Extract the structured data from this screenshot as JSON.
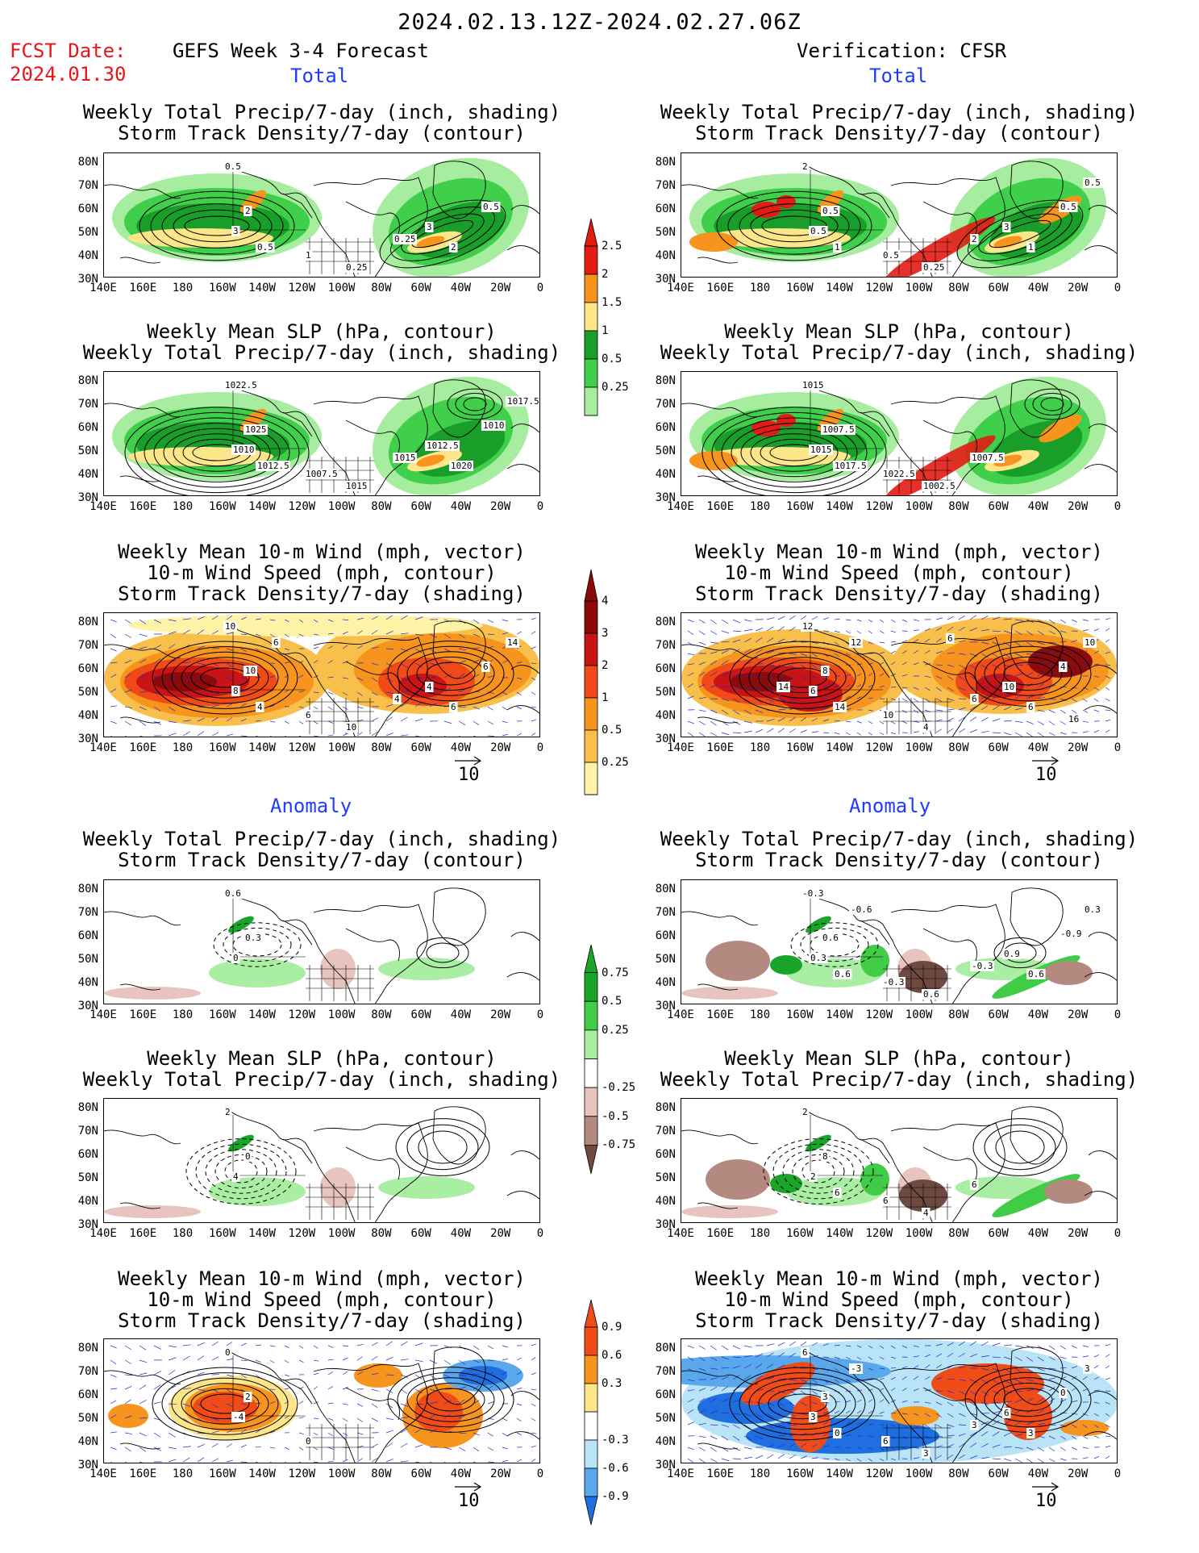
{
  "header": {
    "title": "2024.02.13.12Z-2024.02.27.06Z",
    "fcst_date_label": "FCST Date:",
    "fcst_date_value": "2024.01.30",
    "left_column_title": "GEFS Week 3-4 Forecast",
    "right_column_title": "Verification: CFSR"
  },
  "sections": {
    "total": "Total",
    "anomaly": "Anomaly"
  },
  "panel_titles": {
    "precip_storm": [
      "Weekly Total Precip/7-day (inch, shading)",
      "Storm Track Density/7-day (contour)"
    ],
    "slp_precip": [
      "Weekly Mean SLP (hPa, contour)",
      "Weekly Total Precip/7-day (inch, shading)"
    ],
    "wind_storm": [
      "Weekly Mean 10-m Wind (mph, vector)",
      "10-m Wind Speed (mph, contour)",
      "Storm Track Density/7-day (shading)"
    ]
  },
  "axes": {
    "lat_labels": [
      "80N",
      "70N",
      "60N",
      "50N",
      "40N",
      "30N"
    ],
    "lon_labels": [
      "140E",
      "160E",
      "180",
      "160W",
      "140W",
      "120W",
      "100W",
      "80W",
      "60W",
      "40W",
      "20W",
      "0"
    ]
  },
  "colorbars": {
    "precip_total": {
      "labels": [
        "2.5",
        "2",
        "1.5",
        "1",
        "0.5",
        "0.25"
      ],
      "colors": [
        "#e21b13",
        "#f7941d",
        "#fde68a",
        "#1a9e2a",
        "#3fcf4a",
        "#a7eda0"
      ]
    },
    "storm_total": {
      "labels": [
        "4",
        "3",
        "2",
        "1",
        "0.5",
        "0.25"
      ],
      "colors": [
        "#8b0a0a",
        "#c81414",
        "#ef4a17",
        "#f7941d",
        "#f8c04a",
        "#fff3a8"
      ]
    },
    "precip_anom": {
      "labels": [
        "0.75",
        "0.5",
        "0.25",
        "-0.25",
        "-0.5",
        "-0.75"
      ],
      "colors_pos": [
        "#1aa52a",
        "#41cc48",
        "#a9eea3"
      ],
      "colors_neg": [
        "#e7c4bd",
        "#b48a80",
        "#6e4a40"
      ]
    },
    "storm_anom": {
      "labels": [
        "0.9",
        "0.6",
        "0.3",
        "-0.3",
        "-0.6",
        "-0.9"
      ],
      "colors_pos": [
        "#f04c18",
        "#f7941d",
        "#fde68a"
      ],
      "colors_neg": [
        "#b9e3f7",
        "#5aa8ec",
        "#1f6fe0"
      ]
    }
  },
  "vector_reference": "10",
  "contour_labels": {
    "L_total_precip": [
      "0.5",
      "2",
      "3",
      "1",
      "0.5",
      "0.25",
      "0.25",
      "3",
      "2",
      "0.5"
    ],
    "R_total_precip": [
      "2",
      "0.5",
      "0.5",
      "0.5",
      "1",
      "0.25",
      "2",
      "3",
      "1",
      "0.5",
      "0.5"
    ],
    "L_total_slp": [
      "1022.5",
      "1025",
      "1010",
      "1007.5",
      "1012.5",
      "1015",
      "1015",
      "1012.5",
      "1020",
      "1010",
      "1017.5"
    ],
    "R_total_slp": [
      "1015",
      "1007.5",
      "1015",
      "1022.5",
      "1017.5",
      "1002.5",
      "1007.5"
    ],
    "L_total_wind": [
      "10",
      "10",
      "8",
      "6",
      "4",
      "10",
      "4",
      "4",
      "6",
      "6",
      "14",
      "6"
    ],
    "R_total_wind": [
      "12",
      "8",
      "6",
      "10",
      "14",
      "4",
      "6",
      "10",
      "6",
      "4",
      "10",
      "12",
      "6",
      "14",
      "16"
    ],
    "L_anom_precip": [
      "0.6",
      "0.3",
      "0"
    ],
    "R_anom_precip": [
      "-0.3",
      "0.6",
      "0.3",
      "-0.3",
      "0.6",
      "0.6",
      "-0.3",
      "0.9",
      "0.6",
      "-0.9",
      "0.3",
      "-0.6"
    ],
    "L_anom_slp": [
      "2",
      "0",
      "4"
    ],
    "R_anom_slp": [
      "2",
      "8",
      "2",
      "6",
      "6",
      "4",
      "6"
    ],
    "L_anom_wind": [
      "0",
      "2",
      "-4",
      "0"
    ],
    "R_anom_wind": [
      "6",
      "3",
      "3",
      "6",
      "0",
      "3",
      "3",
      "6",
      "3",
      "0",
      "3",
      "-3"
    ]
  }
}
